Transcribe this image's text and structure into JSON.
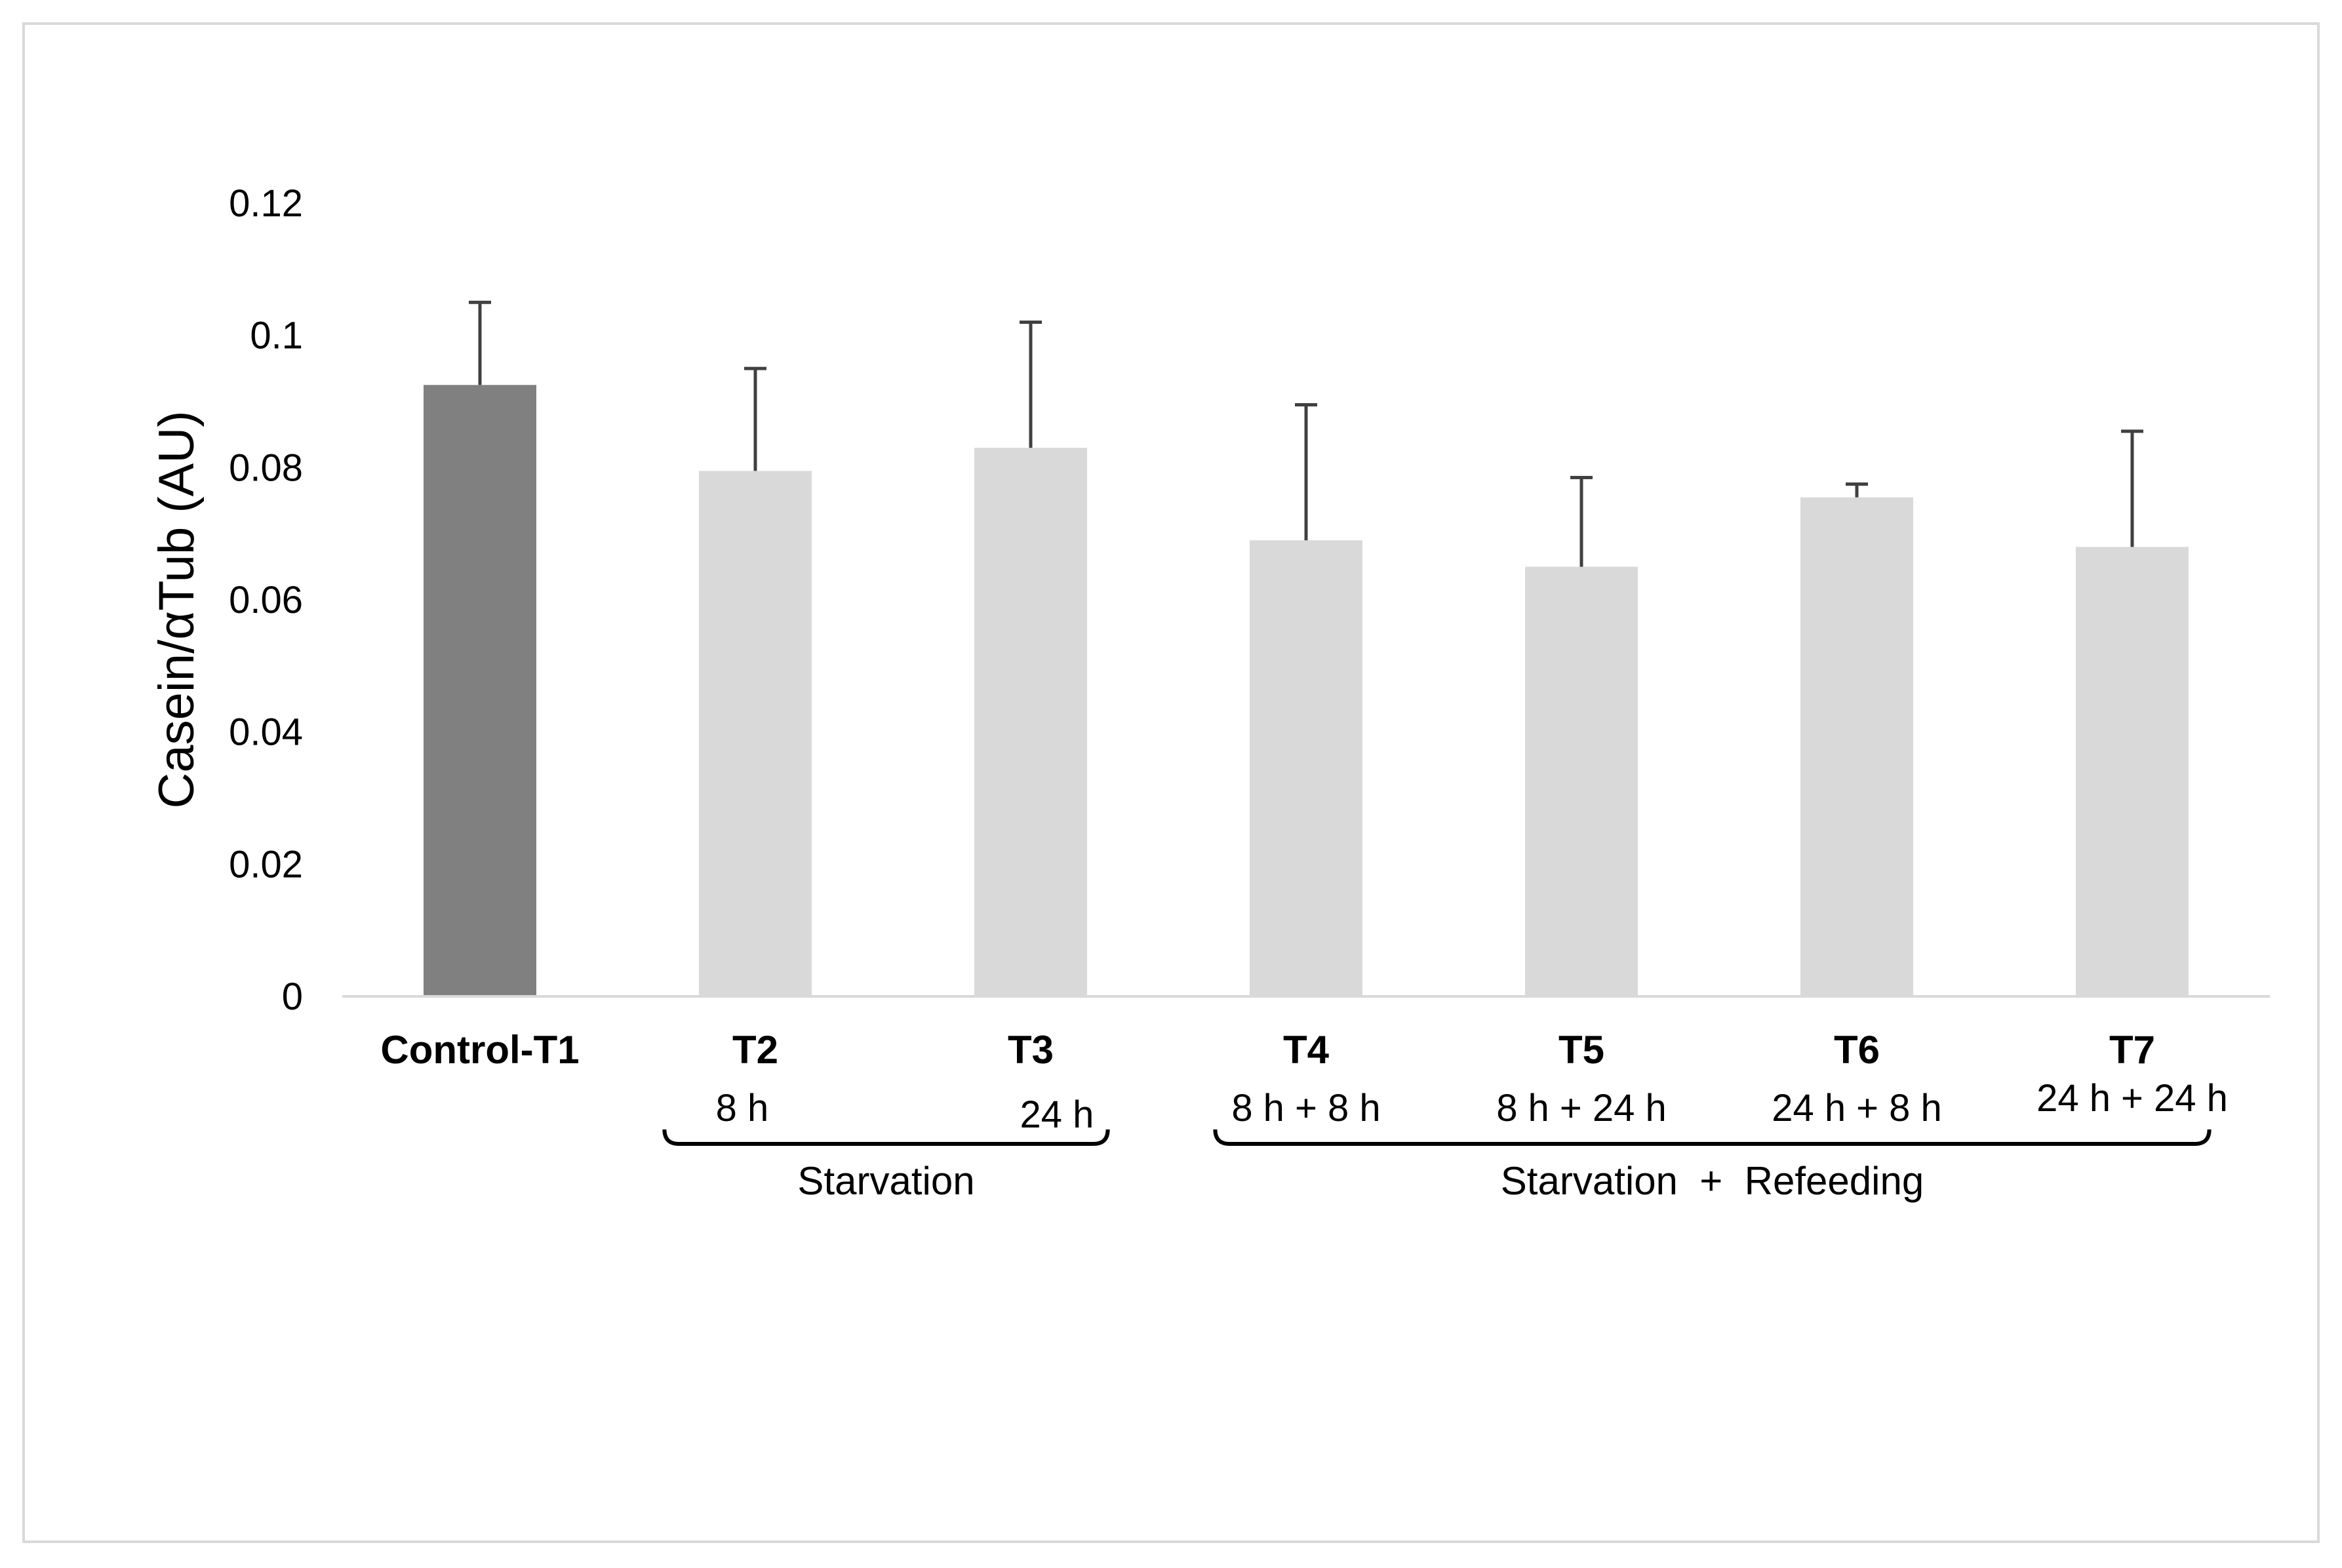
{
  "chart_data": {
    "type": "bar",
    "title": "",
    "xlabel": "",
    "ylabel": "Casein/αTub (AU)",
    "ylim": [
      0,
      0.12
    ],
    "yticks": [
      "0",
      "0.02",
      "0.04",
      "0.06",
      "0.08",
      "0.1",
      "0.12"
    ],
    "grid": false,
    "categories": [
      "Control-T1",
      "T2",
      "T3",
      "T4",
      "T5",
      "T6",
      "T7"
    ],
    "sublabels": [
      "",
      "8 h",
      "24 h",
      "8 h + 8 h",
      "8 h + 24 h",
      "24 h + 8 h",
      "24 h + 24 h"
    ],
    "values": [
      0.0925,
      0.0795,
      0.083,
      0.069,
      0.065,
      0.0755,
      0.068
    ],
    "errors": [
      0.0125,
      0.0155,
      0.019,
      0.0205,
      0.0135,
      0.002,
      0.0175
    ],
    "groups": [
      {
        "label": "Starvation",
        "from": 1,
        "to": 2
      },
      {
        "label": "Starvation  +  Refeeding",
        "from": 3,
        "to": 6
      }
    ],
    "colors": {
      "control": "#808080",
      "treatment": "#d9d9d9",
      "error_bar": "#404040",
      "axis": "#d9d9d9",
      "bracket": "#000000"
    }
  }
}
